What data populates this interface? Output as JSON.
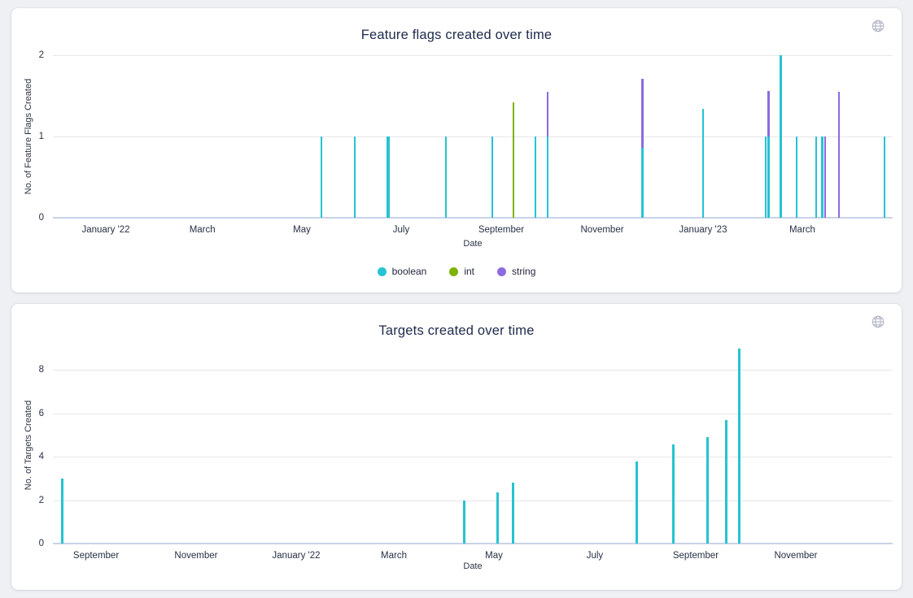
{
  "colors": {
    "boolean": "#26c3d1",
    "int": "#7cb305",
    "string": "#8c6be0",
    "targets": "#26c3d1",
    "gridline": "#e6e6ea",
    "axis_line": "#c9d3e8",
    "globe_icon": "#b2b5c5"
  },
  "chart_data": [
    {
      "type": "bar",
      "title": "Feature flags created over time",
      "xlabel": "Date",
      "ylabel": "No. of Feature Flags Created",
      "ylim": [
        0,
        2
      ],
      "y_ticks": [
        0,
        1,
        2
      ],
      "grid": "horizontal",
      "legend_position": "bottom",
      "legend": [
        {
          "label": "boolean",
          "series": "boolean"
        },
        {
          "label": "int",
          "series": "int"
        },
        {
          "label": "string",
          "series": "string"
        }
      ],
      "x_tick_labels": [
        {
          "text": "January '22",
          "pct": 6.3
        },
        {
          "text": "March",
          "pct": 17.8
        },
        {
          "text": "May",
          "pct": 29.65
        },
        {
          "text": "July",
          "pct": 41.47
        },
        {
          "text": "September",
          "pct": 53.39
        },
        {
          "text": "November",
          "pct": 65.41
        },
        {
          "text": "January '23",
          "pct": 77.42
        },
        {
          "text": "March",
          "pct": 89.24
        }
      ],
      "bars": [
        {
          "pct": 31.98,
          "w": 2.5,
          "segments": [
            {
              "series": "boolean",
              "value": 1
            }
          ]
        },
        {
          "pct": 35.95,
          "w": 2.5,
          "segments": [
            {
              "series": "boolean",
              "value": 1
            }
          ]
        },
        {
          "pct": 39.92,
          "w": 4.5,
          "segments": [
            {
              "series": "boolean",
              "value": 1
            }
          ]
        },
        {
          "pct": 46.8,
          "w": 2.5,
          "segments": [
            {
              "series": "boolean",
              "value": 1
            }
          ]
        },
        {
          "pct": 52.33,
          "w": 2.5,
          "segments": [
            {
              "series": "boolean",
              "value": 1
            }
          ]
        },
        {
          "pct": 54.84,
          "w": 2.5,
          "segments": [
            {
              "series": "int",
              "value": 1.42
            }
          ]
        },
        {
          "pct": 57.46,
          "w": 2.5,
          "segments": [
            {
              "series": "boolean",
              "value": 1
            }
          ]
        },
        {
          "pct": 58.91,
          "w": 2.5,
          "segments": [
            {
              "series": "boolean",
              "value": 1
            },
            {
              "series": "string",
              "value": 0.55
            }
          ]
        },
        {
          "pct": 70.16,
          "w": 3,
          "segments": [
            {
              "series": "boolean",
              "value": 0.86
            },
            {
              "series": "string",
              "value": 0.85
            }
          ]
        },
        {
          "pct": 77.42,
          "w": 2.5,
          "segments": [
            {
              "series": "boolean",
              "value": 1.34
            }
          ]
        },
        {
          "pct": 84.88,
          "w": 2.5,
          "segments": [
            {
              "series": "boolean",
              "value": 1
            }
          ]
        },
        {
          "pct": 85.22,
          "w": 2.5,
          "segments": [
            {
              "series": "boolean",
              "value": 1
            },
            {
              "series": "string",
              "value": 0.56
            }
          ]
        },
        {
          "pct": 86.72,
          "w": 3,
          "segments": [
            {
              "series": "boolean",
              "value": 2
            }
          ]
        },
        {
          "pct": 88.57,
          "w": 2.5,
          "segments": [
            {
              "series": "boolean",
              "value": 1
            }
          ]
        },
        {
          "pct": 90.89,
          "w": 2.5,
          "segments": [
            {
              "series": "boolean",
              "value": 1
            }
          ]
        },
        {
          "pct": 91.62,
          "w": 2.5,
          "segments": [
            {
              "series": "boolean",
              "value": 1
            }
          ]
        },
        {
          "pct": 91.95,
          "w": 2.5,
          "segments": [
            {
              "series": "string",
              "value": 1
            }
          ]
        },
        {
          "pct": 93.6,
          "w": 2.5,
          "segments": [
            {
              "series": "string",
              "value": 1.55
            }
          ]
        },
        {
          "pct": 99.03,
          "w": 2.5,
          "segments": [
            {
              "series": "boolean",
              "value": 1
            }
          ]
        }
      ]
    },
    {
      "type": "bar",
      "title": "Targets created over time",
      "xlabel": "Date",
      "ylabel": "No. of Targets Created",
      "ylim": [
        0,
        9
      ],
      "y_ticks": [
        0,
        2,
        4,
        6,
        8
      ],
      "grid": "horizontal",
      "legend_position": "none",
      "legend": [],
      "x_tick_labels": [
        {
          "text": "September",
          "pct": 5.14
        },
        {
          "text": "November",
          "pct": 17.05
        },
        {
          "text": "January '22",
          "pct": 28.97
        },
        {
          "text": "March",
          "pct": 40.6
        },
        {
          "text": "May",
          "pct": 52.52
        },
        {
          "text": "July",
          "pct": 64.53
        },
        {
          "text": "September",
          "pct": 76.55
        },
        {
          "text": "November",
          "pct": 88.47
        }
      ],
      "bars": [
        {
          "pct": 1.16,
          "w": 3,
          "segments": [
            {
              "series": "targets",
              "value": 3.0
            }
          ]
        },
        {
          "pct": 49.03,
          "w": 3,
          "segments": [
            {
              "series": "targets",
              "value": 2.0
            }
          ]
        },
        {
          "pct": 52.91,
          "w": 3,
          "segments": [
            {
              "series": "targets",
              "value": 2.35
            }
          ]
        },
        {
          "pct": 54.75,
          "w": 3,
          "segments": [
            {
              "series": "targets",
              "value": 2.8
            }
          ]
        },
        {
          "pct": 69.57,
          "w": 3,
          "segments": [
            {
              "series": "targets",
              "value": 3.8
            }
          ]
        },
        {
          "pct": 73.84,
          "w": 3,
          "segments": [
            {
              "series": "targets",
              "value": 4.55
            }
          ]
        },
        {
          "pct": 77.91,
          "w": 3,
          "segments": [
            {
              "series": "targets",
              "value": 4.9
            }
          ]
        },
        {
          "pct": 80.14,
          "w": 3,
          "segments": [
            {
              "series": "targets",
              "value": 5.7
            }
          ]
        },
        {
          "pct": 81.69,
          "w": 3,
          "segments": [
            {
              "series": "targets",
              "value": 9.0
            }
          ]
        }
      ]
    }
  ]
}
